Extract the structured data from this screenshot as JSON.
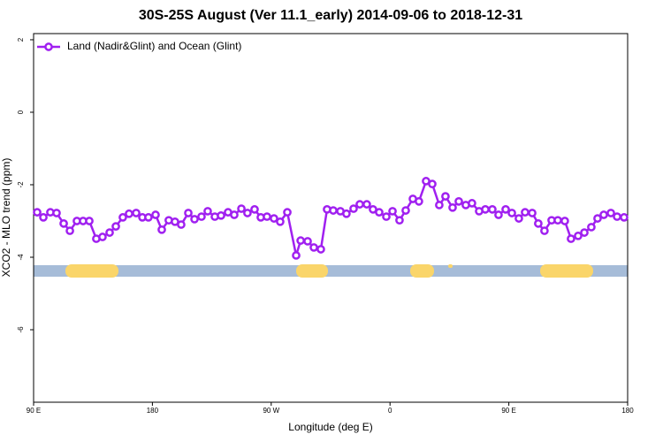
{
  "chart_data": {
    "type": "line",
    "title": "30S-25S August (Ver 11.1_early)   2014-09-06 to 2018-12-31",
    "x_label": "Longitude (deg E)",
    "y_label": "XCO2 - MLO trend (ppm)",
    "xlim": [
      90,
      540
    ],
    "ylim": [
      -8,
      2.17
    ],
    "xticks": [
      {
        "value": 90,
        "label": "90 E"
      },
      180,
      {
        "value": 270,
        "label": "90 W"
      },
      {
        "value": 360,
        "label": "0"
      },
      {
        "value": 450,
        "label": "90 E"
      },
      180
    ],
    "yticks": [
      -6,
      -4,
      -2,
      0,
      2
    ],
    "legend_position": "top-left",
    "series": [
      {
        "name": "Land (Nadir&Glint) and Ocean (Glint)",
        "color": "#a020f0",
        "x": [
          92.7,
          97.4,
          102.7,
          107.4,
          112.8,
          117.5,
          122.8,
          127.5,
          132.2,
          137.5,
          142.2,
          147.6,
          152.3,
          157.6,
          162.3,
          167.7,
          172.4,
          177.0,
          182.4,
          187.1,
          192.4,
          197.1,
          201.8,
          207.2,
          211.9,
          217.2,
          221.9,
          227.3,
          232.0,
          237.3,
          242.0,
          247.4,
          252.0,
          257.4,
          262.1,
          266.8,
          272.1,
          276.8,
          282.2,
          288.9,
          292.3,
          297.6,
          302.3,
          307.6,
          312.3,
          317.0,
          322.4,
          327.0,
          332.4,
          337.1,
          342.4,
          347.1,
          351.8,
          357.2,
          361.9,
          367.2,
          371.9,
          377.3,
          381.9,
          387.3,
          392.0,
          397.3,
          402.0,
          407.4,
          412.1,
          417.4,
          422.1,
          427.5,
          432.2,
          437.5,
          442.2,
          447.6,
          452.3,
          457.6,
          462.3,
          467.7,
          472.3,
          477.0,
          482.4,
          487.1,
          492.4,
          497.1,
          502.5,
          507.2,
          512.5,
          517.2,
          521.9,
          527.3,
          532.0,
          537.3
        ],
        "values": [
          -2.76,
          -2.9,
          -2.76,
          -2.78,
          -3.07,
          -3.27,
          -3.0,
          -3.0,
          -3.0,
          -3.49,
          -3.44,
          -3.32,
          -3.15,
          -2.9,
          -2.8,
          -2.78,
          -2.9,
          -2.9,
          -2.83,
          -3.24,
          -2.98,
          -3.02,
          -3.1,
          -2.78,
          -2.95,
          -2.88,
          -2.73,
          -2.88,
          -2.85,
          -2.76,
          -2.83,
          -2.66,
          -2.78,
          -2.68,
          -2.9,
          -2.88,
          -2.93,
          -3.02,
          -2.76,
          -3.95,
          -3.54,
          -3.56,
          -3.73,
          -3.78,
          -2.68,
          -2.71,
          -2.73,
          -2.8,
          -2.66,
          -2.54,
          -2.54,
          -2.68,
          -2.76,
          -2.88,
          -2.73,
          -2.98,
          -2.71,
          -2.39,
          -2.46,
          -1.9,
          -1.98,
          -2.56,
          -2.32,
          -2.63,
          -2.46,
          -2.56,
          -2.51,
          -2.73,
          -2.68,
          -2.68,
          -2.83,
          -2.68,
          -2.78,
          -2.93,
          -2.76,
          -2.78,
          -3.07,
          -3.27,
          -2.98,
          -2.98,
          -3.0,
          -3.49,
          -3.41,
          -3.32,
          -3.17,
          -2.93,
          -2.83,
          -2.78,
          -2.88,
          -2.9
        ]
      }
    ]
  }
}
